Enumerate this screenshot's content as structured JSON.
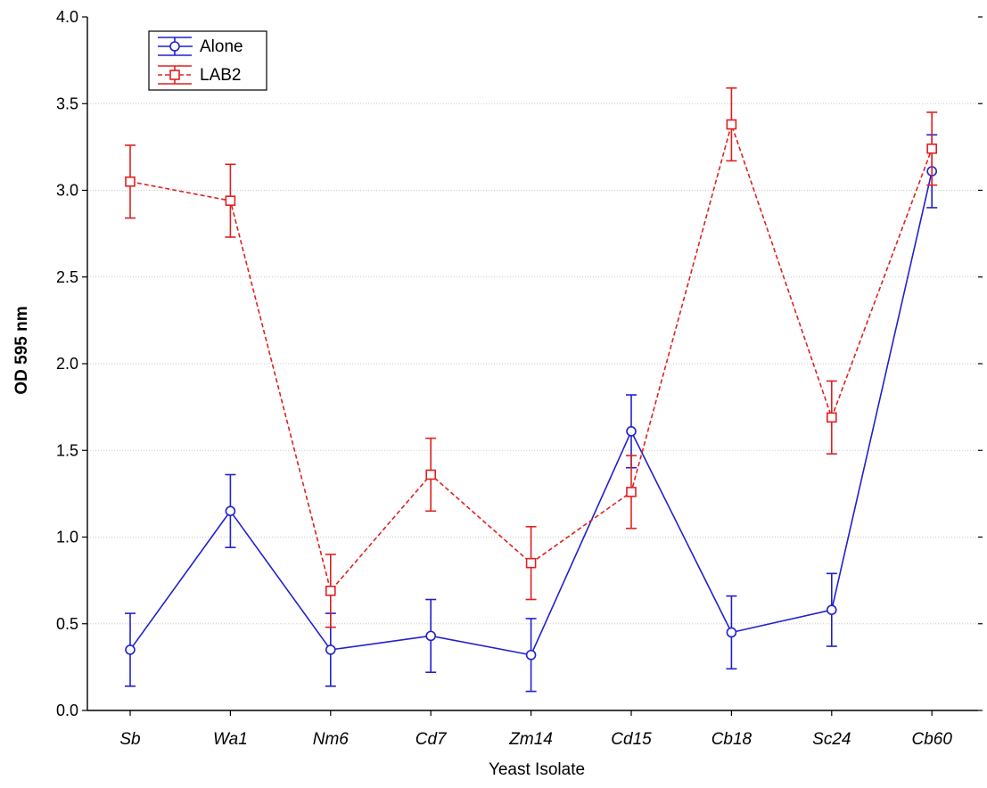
{
  "chart_data": {
    "type": "line",
    "title": "",
    "xlabel": "Yeast Isolate",
    "ylabel": "OD 595 nm",
    "ylim": [
      0.0,
      4.0
    ],
    "yticks": [
      "0.0",
      "0.5",
      "1.0",
      "1.5",
      "2.0",
      "2.5",
      "3.0",
      "3.5",
      "4.0"
    ],
    "grid": "horizontal dotted",
    "legend_position": "top-left",
    "categories": [
      "Sb",
      "Wa1",
      "Nm6",
      "Cd7",
      "Zm14",
      "Cd15",
      "Cb18",
      "Sc24",
      "Cb60"
    ],
    "series": [
      {
        "name": "Alone",
        "color": "#2020d0",
        "line_style": "solid",
        "marker": "circle",
        "values": [
          0.35,
          1.15,
          0.35,
          0.43,
          0.32,
          1.61,
          0.45,
          0.58,
          3.11
        ],
        "error": [
          0.21,
          0.21,
          0.21,
          0.21,
          0.21,
          0.21,
          0.21,
          0.21,
          0.21
        ]
      },
      {
        "name": "LAB2",
        "color": "#e02020",
        "line_style": "dashed",
        "marker": "square",
        "values": [
          3.05,
          2.94,
          0.69,
          1.36,
          0.85,
          1.26,
          3.38,
          1.69,
          3.24
        ],
        "error": [
          0.21,
          0.21,
          0.21,
          0.21,
          0.21,
          0.21,
          0.21,
          0.21,
          0.21
        ]
      }
    ]
  }
}
